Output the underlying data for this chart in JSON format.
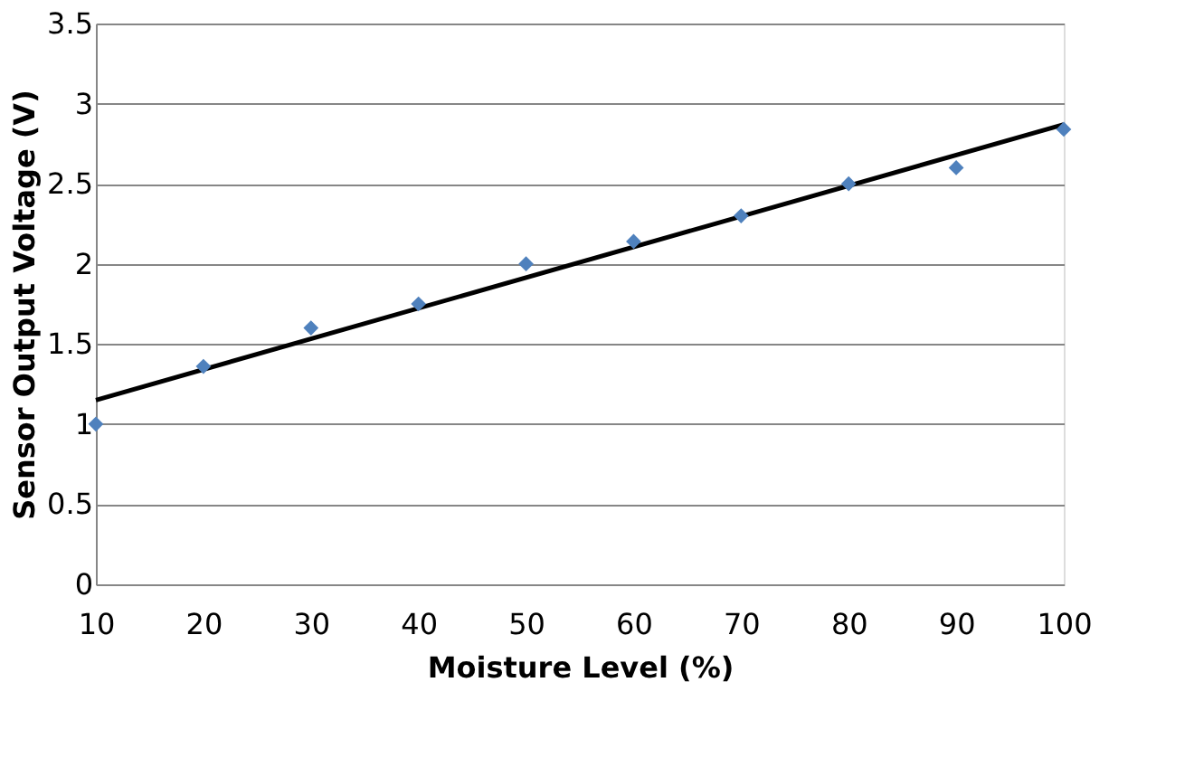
{
  "chart_data": {
    "type": "scatter",
    "xlabel": "Moisture Level (%)",
    "ylabel": "Sensor Output Voltage (V)",
    "x": [
      10,
      20,
      30,
      40,
      50,
      60,
      70,
      80,
      90,
      100
    ],
    "series": [
      {
        "color": "#4f81bd",
        "marker": "diamond",
        "values": [
          1.0,
          1.36,
          1.6,
          1.75,
          2.0,
          2.14,
          2.3,
          2.5,
          2.6,
          2.84
        ]
      },
      {
        "type": "line",
        "color": "#000000",
        "marker": "none",
        "x": [
          10,
          100
        ],
        "values": [
          1.15,
          2.87
        ]
      }
    ],
    "xlim": [
      10,
      100
    ],
    "xticks": [
      10,
      20,
      30,
      40,
      50,
      60,
      70,
      80,
      90,
      100
    ],
    "ylim": [
      0,
      3.5
    ],
    "yticks": [
      0,
      0.5,
      1,
      1.5,
      2,
      2.5,
      3,
      3.5
    ],
    "grid": "y"
  }
}
